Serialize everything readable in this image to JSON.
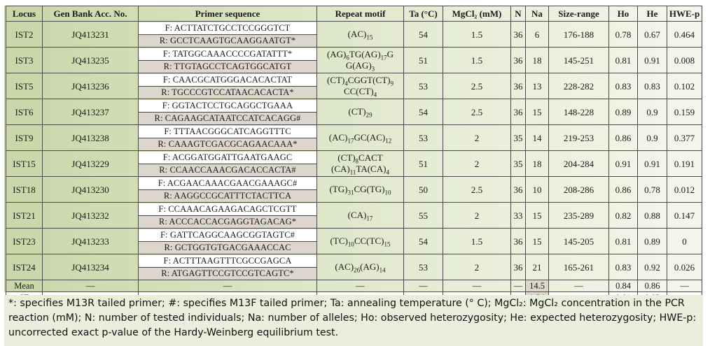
{
  "table": {
    "headers": {
      "locus": "Locus",
      "genbank": "Gen Bank Acc. No.",
      "primer": "Primer sequence",
      "motif": "Repeat motif",
      "ta": "Ta (°C)",
      "mgcl2": "MgCl₂ (mM)",
      "n": "N",
      "na": "Na",
      "size": "Size-range",
      "ho": "Ho",
      "he": "He",
      "hwe": "HWE-p"
    },
    "rows": [
      {
        "locus": "IST2",
        "acc": "JQ413231",
        "f": "F: ACTTATCTGCCTCCGGGTCT",
        "r": "R: GCCTCAAGTGCAAGGAATGT*",
        "motif": [
          [
            "(AC)",
            "15"
          ]
        ],
        "ta": "54",
        "mgcl2": "1.5",
        "n": "36",
        "na": "6",
        "size": "176-188",
        "ho": "0.78",
        "he": "0.67",
        "hwe": "0.464"
      },
      {
        "locus": "IST3",
        "acc": "JQ413235",
        "f": "F: TATGGCAAACCCCGATATTT*",
        "r": "R: TTGTAGCCTCAGTGGCATGT",
        "motif": [
          [
            "(AG)",
            "6"
          ],
          [
            "TG(AG)",
            "17"
          ],
          [
            "G",
            ""
          ]
        ],
        "motif2": [
          [
            "G(AG)",
            "3"
          ]
        ],
        "ta": "51",
        "mgcl2": "1.5",
        "n": "36",
        "na": "18",
        "size": "145-251",
        "ho": "0.81",
        "he": "0.91",
        "hwe": "0.008"
      },
      {
        "locus": "IST5",
        "acc": "JQ413236",
        "f": "F: CAACGCATGGGACACACTAT",
        "r": "R: TGCCCGTCCATAACACACTA*",
        "motif": [
          [
            "(CT)",
            "4"
          ],
          [
            "CGGT(CT)",
            "9"
          ]
        ],
        "motif2": [
          [
            "CC(CT)",
            "4"
          ]
        ],
        "ta": "53",
        "mgcl2": "2.5",
        "n": "36",
        "na": "13",
        "size": "228-282",
        "ho": "0.83",
        "he": "0.83",
        "hwe": "0.102"
      },
      {
        "locus": "IST6",
        "acc": "JQ413237",
        "f": "F: GGTACTCCTGCAGGCTGAAA",
        "r": "R: CAGAAGCATAATCCATCACAGG#",
        "motif": [
          [
            "(CT)",
            "29"
          ]
        ],
        "ta": "54",
        "mgcl2": "2.5",
        "n": "36",
        "na": "15",
        "size": "148-228",
        "ho": "0.89",
        "he": "0.9",
        "hwe": "0.159"
      },
      {
        "locus": "IST9",
        "acc": "JQ413238",
        "f": "F: TTTAACGGGCATCAGGTTTC",
        "r": "R: CAAAGTCGACGCAGAACAAA*",
        "motif": [
          [
            "(AC)",
            "17"
          ],
          [
            "GC(AC)",
            "12"
          ]
        ],
        "ta": "53",
        "mgcl2": "2",
        "n": "35",
        "na": "14",
        "size": "219-253",
        "ho": "0.86",
        "he": "0.9",
        "hwe": "0.377"
      },
      {
        "locus": "IST15",
        "acc": "JQ413229",
        "f": "F: ACGGATGGATTGAATGAAGC",
        "r": "R: CCAACCAAACGACACCACTA#",
        "motif": [
          [
            "(CT)",
            "8"
          ],
          [
            "CACT",
            ""
          ]
        ],
        "motif2": [
          [
            "(CA)",
            "11"
          ],
          [
            "TA(CA)",
            "4"
          ]
        ],
        "ta": "51",
        "mgcl2": "2",
        "n": "35",
        "na": "18",
        "size": "204-284",
        "ho": "0.91",
        "he": "0.91",
        "hwe": "0.191"
      },
      {
        "locus": "IST18",
        "acc": "JQ413230",
        "f": "F: ACGAACAAACGAACGAAAGC#",
        "r": "R: AAGGCCGCATTTCTACTTCA",
        "motif": [
          [
            "(TG)",
            "31"
          ],
          [
            "CG(TG)",
            "10"
          ]
        ],
        "ta": "50",
        "mgcl2": "2.5",
        "n": "36",
        "na": "10",
        "size": "208-286",
        "ho": "0.86",
        "he": "0.78",
        "hwe": "0.012"
      },
      {
        "locus": "IST21",
        "acc": "JQ413232",
        "f": "F: CCAAACAGAAGACAGCTCGTT",
        "r": "R: ACCCACCACGAGGTAGACAG*",
        "motif": [
          [
            "(CA)",
            "17"
          ]
        ],
        "ta": "55",
        "mgcl2": "2",
        "n": "33",
        "na": "15",
        "size": "235-289",
        "ho": "0.82",
        "he": "0.88",
        "hwe": "0.147"
      },
      {
        "locus": "IST23",
        "acc": "JQ413233",
        "f": "F: GATTCAGGCAAGCGGTAGTC#",
        "r": "R: GCTGGTGTGACGAAACCAC",
        "motif": [
          [
            "(TC)",
            "10"
          ],
          [
            "CC(TC)",
            "15"
          ]
        ],
        "ta": "54",
        "mgcl2": "1.5",
        "n": "36",
        "na": "15",
        "size": "145-205",
        "ho": "0.81",
        "he": "0.89",
        "hwe": "0"
      },
      {
        "locus": "IST24",
        "acc": "JQ413234",
        "f": "F: ACTTTAAGTTTCGCCGAGCA",
        "r": "R: ATGAGTTCCGTCCGTCAGTC*",
        "motif": [
          [
            "(AC)",
            "26"
          ],
          [
            "(AG)",
            "14"
          ]
        ],
        "ta": "53",
        "mgcl2": "2",
        "n": "36",
        "na": "21",
        "size": "165-261",
        "ho": "0.83",
        "he": "0.92",
        "hwe": "0.026"
      }
    ],
    "mean": {
      "label": "Mean",
      "acc": "—",
      "primer": "—",
      "motif": "—",
      "ta": "—",
      "mgcl2": "—",
      "n": "—",
      "na": "14.5",
      "size": "—",
      "ho": "0.84",
      "he": "0.86",
      "hwe": "—"
    },
    "se": {
      "label": "SE",
      "acc": "—",
      "primer": "—",
      "motif": "—",
      "ta": "—",
      "mgcl2": "—",
      "n": "—",
      "na": "1.34",
      "size": "—",
      "ho": "0.01",
      "he": "0.03",
      "hwe": "—"
    }
  },
  "caption": "*: specifies M13R tailed primer; #: specifies M13F tailed primer; Ta: annealing temperature (° C); MgCl₂: MgCl₂ concentration in the PCR reaction (mM); N: number of tested individuals; Na: number of alleles; Ho: observed heterozygosity; He: expected heterozygosity; HWE-p: uncorrected exact p-value of the Hardy-Weinberg equilibrium test.",
  "colors": {
    "panel_dark": "#c9d6a8",
    "panel_light": "#f4f7ec",
    "reverse_primer_bg": "#ddd6cd"
  }
}
